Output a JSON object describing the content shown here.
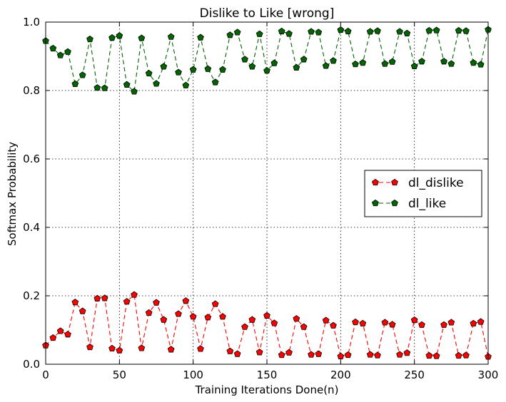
{
  "chart_data": {
    "type": "line",
    "title": "Dislike to Like [wrong]",
    "xlabel": "Training Iterations Done(n)",
    "ylabel": "Softmax Probability",
    "xlim": [
      0,
      300
    ],
    "ylim": [
      0.0,
      1.0
    ],
    "xticks": [
      "0",
      "50",
      "100",
      "150",
      "200",
      "250",
      "300"
    ],
    "yticks": [
      "0.0",
      "0.2",
      "0.4",
      "0.6",
      "0.8",
      "1.0"
    ],
    "grid": true,
    "legend_position": "center-right",
    "x": [
      0,
      5,
      10,
      15,
      20,
      25,
      30,
      35,
      40,
      45,
      50,
      55,
      60,
      65,
      70,
      75,
      80,
      85,
      90,
      95,
      100,
      105,
      110,
      115,
      120,
      125,
      130,
      135,
      140,
      145,
      150,
      155,
      160,
      165,
      170,
      175,
      180,
      185,
      190,
      195,
      200,
      205,
      210,
      215,
      220,
      225,
      230,
      235,
      240,
      245,
      250,
      255,
      260,
      265,
      270,
      275,
      280,
      285,
      290,
      295,
      300
    ],
    "series": [
      {
        "name": "dl_dislike",
        "color": "#ff0000",
        "values": [
          0.055,
          0.077,
          0.097,
          0.087,
          0.181,
          0.155,
          0.05,
          0.192,
          0.193,
          0.046,
          0.04,
          0.183,
          0.203,
          0.047,
          0.15,
          0.18,
          0.13,
          0.043,
          0.147,
          0.185,
          0.139,
          0.045,
          0.137,
          0.176,
          0.139,
          0.038,
          0.03,
          0.109,
          0.13,
          0.035,
          0.142,
          0.12,
          0.027,
          0.034,
          0.133,
          0.109,
          0.028,
          0.03,
          0.128,
          0.113,
          0.023,
          0.027,
          0.123,
          0.119,
          0.028,
          0.026,
          0.122,
          0.116,
          0.028,
          0.033,
          0.129,
          0.115,
          0.025,
          0.024,
          0.115,
          0.122,
          0.025,
          0.026,
          0.119,
          0.124,
          0.022
        ]
      },
      {
        "name": "dl_like",
        "color": "#006400",
        "values": [
          0.945,
          0.923,
          0.903,
          0.913,
          0.819,
          0.845,
          0.95,
          0.808,
          0.807,
          0.954,
          0.96,
          0.817,
          0.797,
          0.953,
          0.85,
          0.82,
          0.87,
          0.957,
          0.853,
          0.815,
          0.861,
          0.955,
          0.863,
          0.824,
          0.861,
          0.962,
          0.97,
          0.891,
          0.87,
          0.965,
          0.858,
          0.88,
          0.973,
          0.966,
          0.867,
          0.891,
          0.972,
          0.97,
          0.872,
          0.887,
          0.977,
          0.973,
          0.877,
          0.881,
          0.972,
          0.974,
          0.878,
          0.884,
          0.972,
          0.967,
          0.871,
          0.885,
          0.975,
          0.976,
          0.885,
          0.878,
          0.975,
          0.974,
          0.881,
          0.876,
          0.978
        ]
      }
    ]
  }
}
